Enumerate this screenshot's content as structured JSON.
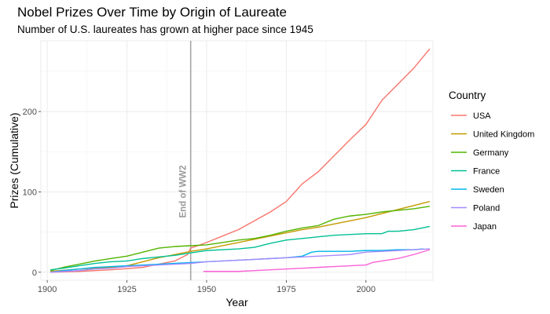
{
  "chart_data": {
    "type": "line",
    "title": "Nobel Prizes Over Time by Origin of Laureate",
    "subtitle": "Number of U.S. laureates has grown at higher pace since 1945",
    "xlabel": "Year",
    "ylabel": "Prizes (Cumulative)",
    "xlim": [
      1898,
      2021
    ],
    "ylim": [
      -10,
      288
    ],
    "x_ticks": [
      1900,
      1925,
      1950,
      1975,
      2000
    ],
    "y_ticks": [
      0,
      100,
      200
    ],
    "grid": true,
    "legend": {
      "title": "Country",
      "position": "right"
    },
    "annotation": {
      "text": "End of WW2",
      "x": 1945
    },
    "series": [
      {
        "name": "USA",
        "color": "#F8766D",
        "x": [
          1901,
          1910,
          1920,
          1930,
          1940,
          1944,
          1945,
          1950,
          1955,
          1960,
          1965,
          1970,
          1975,
          1980,
          1985,
          1990,
          1995,
          2000,
          2005,
          2010,
          2015,
          2020
        ],
        "y": [
          0,
          1,
          3,
          6,
          14,
          22,
          30,
          37,
          45,
          53,
          64,
          75,
          88,
          110,
          125,
          145,
          165,
          184,
          214,
          234,
          254,
          278
        ]
      },
      {
        "name": "United Kingdom",
        "color": "#C49A00",
        "x": [
          1901,
          1910,
          1920,
          1925,
          1930,
          1935,
          1940,
          1945,
          1950,
          1955,
          1960,
          1965,
          1970,
          1975,
          1980,
          1985,
          1990,
          1995,
          2000,
          2005,
          2010,
          2015,
          2020
        ],
        "y": [
          1,
          4,
          6,
          8,
          13,
          18,
          22,
          26,
          29,
          33,
          37,
          41,
          45,
          49,
          53,
          56,
          60,
          64,
          68,
          73,
          78,
          83,
          88
        ]
      },
      {
        "name": "Germany",
        "color": "#53B400",
        "x": [
          1901,
          1905,
          1910,
          1915,
          1920,
          1925,
          1930,
          1935,
          1940,
          1945,
          1950,
          1955,
          1960,
          1965,
          1970,
          1975,
          1980,
          1985,
          1990,
          1995,
          2000,
          2005,
          2010,
          2015,
          2020
        ],
        "y": [
          2,
          6,
          10,
          14,
          17,
          20,
          25,
          30,
          32,
          33,
          34,
          37,
          40,
          42,
          46,
          51,
          55,
          58,
          66,
          70,
          72,
          75,
          77,
          79,
          82
        ]
      },
      {
        "name": "France",
        "color": "#00C094",
        "x": [
          1901,
          1905,
          1910,
          1915,
          1920,
          1925,
          1930,
          1935,
          1940,
          1945,
          1950,
          1955,
          1960,
          1965,
          1970,
          1975,
          1980,
          1985,
          1990,
          1995,
          2000,
          2005,
          2007,
          2010,
          2015,
          2020
        ],
        "y": [
          3,
          5,
          8,
          11,
          13,
          14,
          17,
          19,
          21,
          24,
          27,
          28,
          29,
          31,
          36,
          40,
          42,
          44,
          46,
          47,
          48,
          48,
          51,
          51,
          53,
          57
        ]
      },
      {
        "name": "Sweden",
        "color": "#00B6EB",
        "x": [
          1901,
          1905,
          1910,
          1915,
          1920,
          1925,
          1930,
          1935,
          1940,
          1945,
          1950,
          1955,
          1960,
          1965,
          1970,
          1975,
          1980,
          1983,
          1985,
          1990,
          1995,
          2000,
          2005,
          2010,
          2015,
          2018
        ],
        "y": [
          0,
          2,
          4,
          6,
          7,
          8,
          9,
          10,
          11,
          12,
          13,
          14,
          15,
          16,
          17,
          18,
          20,
          25,
          26,
          26,
          26,
          27,
          27,
          28,
          28,
          29
        ]
      },
      {
        "name": "Poland",
        "color": "#A58AFF",
        "x": [
          1901,
          1905,
          1910,
          1915,
          1920,
          1925,
          1930,
          1935,
          1940,
          1945,
          1950,
          1955,
          1960,
          1965,
          1970,
          1975,
          1980,
          1985,
          1990,
          1995,
          2000,
          2005,
          2010,
          2015,
          2020
        ],
        "y": [
          0,
          1,
          2,
          4,
          5,
          7,
          8,
          9,
          10,
          11,
          13,
          14,
          15,
          16,
          17,
          18,
          19,
          20,
          21,
          22,
          25,
          26,
          27,
          28,
          29
        ]
      },
      {
        "name": "Japan",
        "color": "#FB61D7",
        "x": [
          1949,
          1955,
          1960,
          1965,
          1970,
          1975,
          1980,
          1985,
          1990,
          1995,
          2000,
          2002,
          2005,
          2010,
          2015,
          2020
        ],
        "y": [
          1,
          1,
          1,
          2,
          3,
          4,
          5,
          6,
          7,
          8,
          9,
          12,
          14,
          17,
          22,
          28
        ]
      }
    ]
  }
}
